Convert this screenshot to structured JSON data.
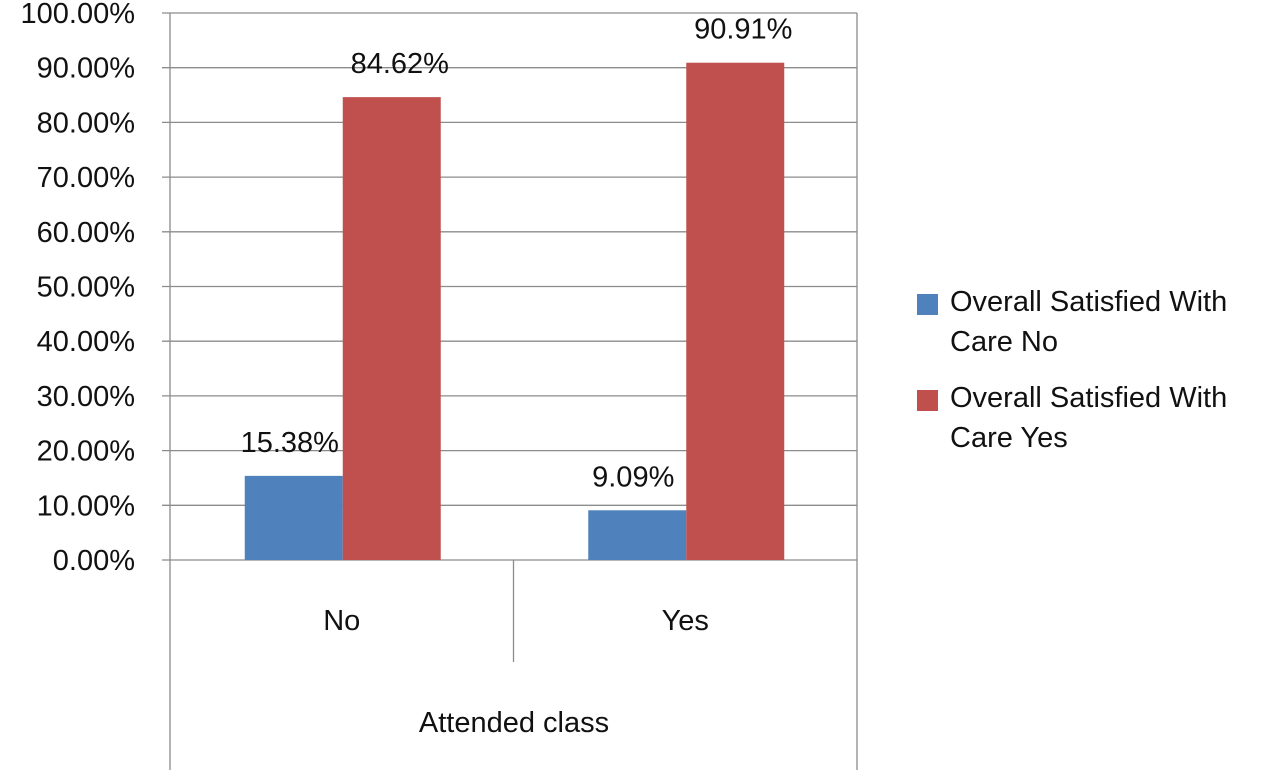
{
  "chart_data": {
    "type": "bar",
    "categories": [
      "No",
      "Yes"
    ],
    "series": [
      {
        "name": "Overall Satisfied With Care No",
        "values": [
          15.38,
          9.09
        ],
        "labels": [
          "15.38%",
          "9.09%"
        ],
        "color": "#4F81BD"
      },
      {
        "name": "Overall Satisfied With Care Yes",
        "values": [
          84.62,
          90.91
        ],
        "labels": [
          "84.62%",
          "90.91%"
        ],
        "color": "#C0504D"
      }
    ],
    "title": "",
    "xlabel": "Attended class",
    "ylabel": "",
    "ylim": [
      0,
      100
    ],
    "yticks": [
      "0.00%",
      "10.00%",
      "20.00%",
      "30.00%",
      "40.00%",
      "50.00%",
      "60.00%",
      "70.00%",
      "80.00%",
      "90.00%",
      "100.00%"
    ],
    "grid": true,
    "legend_position": "right"
  }
}
